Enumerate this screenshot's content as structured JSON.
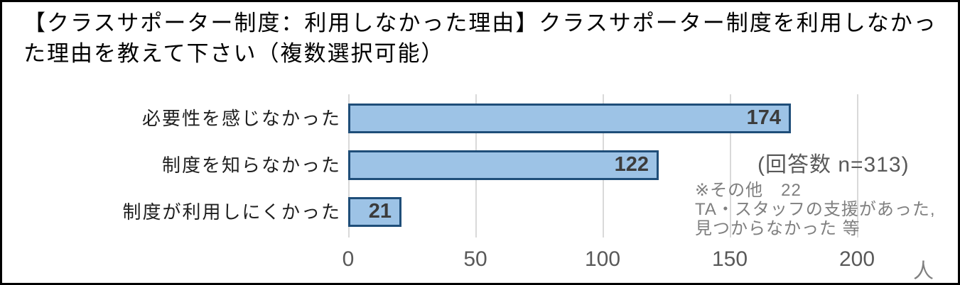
{
  "chart_data": {
    "type": "bar",
    "orientation": "horizontal",
    "title": "【クラスサポーター制度：利用しなかった理由】クラスサポーター制度を利用しなかった理由を教えて下さい（複数選択可能）",
    "categories": [
      "必要性を感じなかった",
      "制度を知らなかった",
      "制度が利用しにくかった"
    ],
    "values": [
      174,
      122,
      21
    ],
    "xlabel": "人",
    "xlim": [
      0,
      200
    ],
    "xticks": [
      "0",
      "50",
      "100",
      "150",
      "200"
    ],
    "grid": true,
    "legend": false,
    "colors": {
      "bar_fill": "#9dc3e6",
      "bar_border": "#1f4e79",
      "gridline": "#d9d9d9",
      "tick_text": "#595959",
      "value_text": "#3b3b3b",
      "note_text": "#7f7f7f",
      "frame_border": "#000000"
    }
  },
  "annotations": {
    "response_count": "(回答数 n=313)",
    "other_line1": "※その他　22",
    "other_line2": "TA・スタッフの支援があった,",
    "other_line3": "見つからなかった 等"
  }
}
